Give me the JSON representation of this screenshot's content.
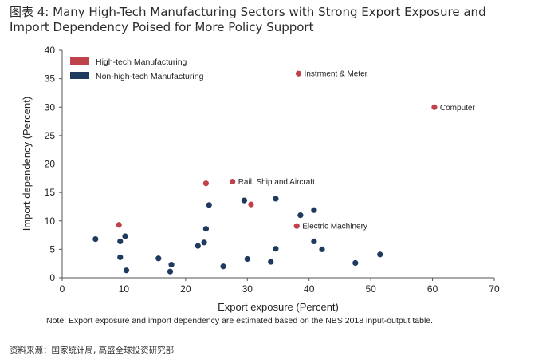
{
  "figure": {
    "title": "图表 4: Many High-Tech Manufacturing Sectors with Strong Export Exposure and Import Dependency Poised for More Policy Support",
    "note": "Note: Export exposure and import dependency are estimated based on the NBS 2018 input-output table.",
    "source": "资料来源：国家统计局, 高盛全球投资研究部"
  },
  "colors": {
    "high_tech": "#c0424a",
    "non_high_tech": "#1f3a5f",
    "axis": "#555555"
  },
  "chart_data": {
    "type": "scatter",
    "xlabel": "Export exposure (Percent)",
    "ylabel": "Import dependency (Percent)",
    "xlim": [
      0,
      70
    ],
    "ylim": [
      0,
      40
    ],
    "xticks": [
      "0",
      "10",
      "20",
      "30",
      "40",
      "50",
      "60",
      "70"
    ],
    "yticks": [
      "0",
      "5",
      "10",
      "15",
      "20",
      "25",
      "30",
      "35",
      "40"
    ],
    "legend_position": "top-left",
    "series": [
      {
        "name": "High-tech Manufacturing",
        "color": "#c0424a",
        "points": [
          {
            "x": 38.3,
            "y": 35.9,
            "label": "Instrment & Meter"
          },
          {
            "x": 60.3,
            "y": 30.0,
            "label": "Computer"
          },
          {
            "x": 27.6,
            "y": 16.9,
            "label": "Rail, Ship and Aircraft"
          },
          {
            "x": 23.3,
            "y": 16.6,
            "label": ""
          },
          {
            "x": 30.6,
            "y": 12.9,
            "label": ""
          },
          {
            "x": 38.0,
            "y": 9.1,
            "label": "Electric Machinery"
          },
          {
            "x": 9.2,
            "y": 9.3,
            "label": ""
          }
        ]
      },
      {
        "name": "Non-high-tech Manufacturing",
        "color": "#1f3a5f",
        "points": [
          {
            "x": 5.4,
            "y": 6.8
          },
          {
            "x": 9.4,
            "y": 6.4
          },
          {
            "x": 10.2,
            "y": 7.3
          },
          {
            "x": 9.4,
            "y": 3.6
          },
          {
            "x": 10.4,
            "y": 1.3
          },
          {
            "x": 15.6,
            "y": 3.4
          },
          {
            "x": 17.7,
            "y": 2.3
          },
          {
            "x": 17.5,
            "y": 1.1
          },
          {
            "x": 22.0,
            "y": 5.6
          },
          {
            "x": 23.0,
            "y": 6.2
          },
          {
            "x": 23.3,
            "y": 8.6
          },
          {
            "x": 23.8,
            "y": 12.8
          },
          {
            "x": 26.1,
            "y": 2.0
          },
          {
            "x": 29.5,
            "y": 13.6
          },
          {
            "x": 30.0,
            "y": 3.3
          },
          {
            "x": 33.8,
            "y": 2.8
          },
          {
            "x": 34.6,
            "y": 13.9
          },
          {
            "x": 34.6,
            "y": 5.1
          },
          {
            "x": 38.6,
            "y": 11.0
          },
          {
            "x": 40.8,
            "y": 11.9
          },
          {
            "x": 40.8,
            "y": 6.4
          },
          {
            "x": 42.1,
            "y": 5.0
          },
          {
            "x": 47.5,
            "y": 2.6
          },
          {
            "x": 51.5,
            "y": 4.1
          }
        ]
      }
    ]
  }
}
